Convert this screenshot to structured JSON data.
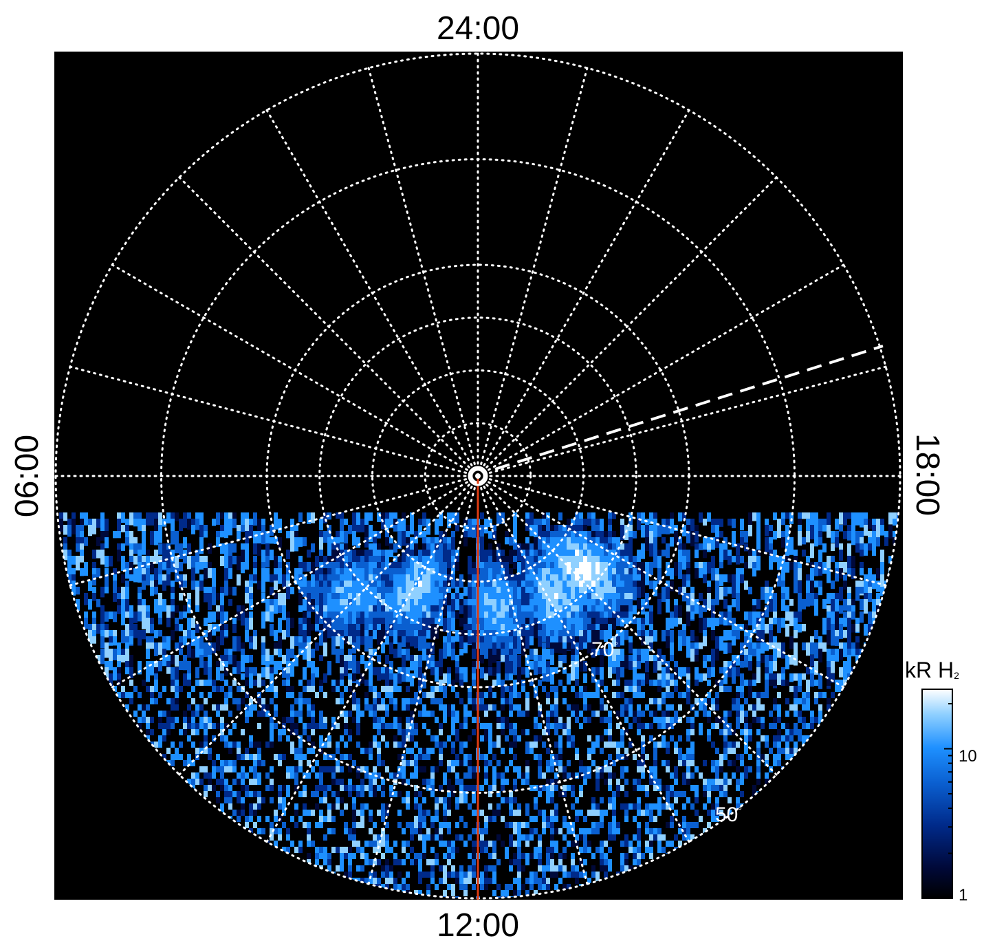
{
  "chart_data": {
    "type": "heatmap",
    "projection": "polar (local time vs latitude)",
    "local_time_labels": {
      "top": "24:00",
      "bottom": "12:00",
      "left": "06:00",
      "right": "18:00"
    },
    "latitude_labels": [
      {
        "value": 70,
        "text": "70"
      },
      {
        "value": 50,
        "text": "50"
      }
    ],
    "degree_symbol": "°",
    "latitude_circles_deg": [
      90,
      85,
      80,
      75,
      70,
      60,
      50
    ],
    "meridian_spacing_hours": 1,
    "colorbar": {
      "title": "kR H",
      "title_subscript": "2",
      "scale": "log",
      "range": [
        1,
        25
      ],
      "ticks": [
        {
          "value": 1,
          "label": "1"
        },
        {
          "value": 10,
          "label": "10"
        }
      ],
      "colormap": [
        "#000000",
        "#00093a",
        "#002a8a",
        "#0a5fd0",
        "#1e90ff",
        "#8fd0ff",
        "#ffffff"
      ]
    },
    "annotations": [
      {
        "type": "line",
        "color": "#e03c12",
        "from_local_time": "12:00",
        "description_hidden": true
      },
      {
        "type": "dashed-line",
        "color": "#ffffff",
        "local_time": "17:00"
      }
    ],
    "grid": true,
    "background": "#000000",
    "coverage_local_time": [
      "06:00",
      "18:00"
    ],
    "bright_features": [
      {
        "local_time_h": 15.3,
        "lat_deg": 77,
        "intensity_kr": 25
      },
      {
        "local_time_h": 14.2,
        "lat_deg": 77,
        "intensity_kr": 18
      },
      {
        "local_time_h": 12.5,
        "lat_deg": 78,
        "intensity_kr": 15
      },
      {
        "local_time_h": 10.0,
        "lat_deg": 78,
        "intensity_kr": 18
      },
      {
        "local_time_h": 8.8,
        "lat_deg": 74,
        "intensity_kr": 12
      }
    ]
  }
}
